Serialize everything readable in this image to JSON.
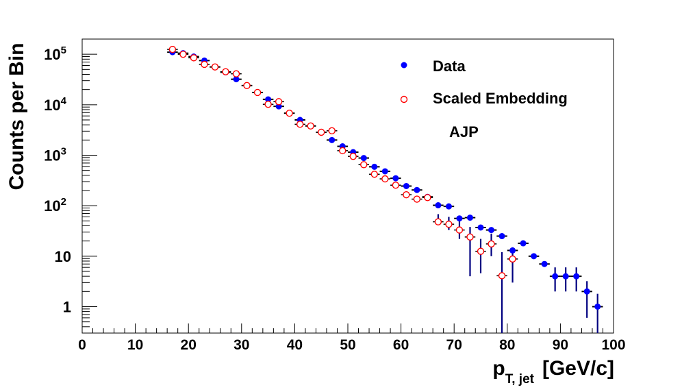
{
  "chart_data": {
    "type": "scatter",
    "xlabel": "p",
    "xlabel_sub": "T, jet",
    "xlabel_unit": "[GeV/c]",
    "ylabel": "Counts per Bin",
    "xlim": [
      0,
      100
    ],
    "ylim": [
      0.3,
      200000
    ],
    "yscale": "log",
    "grid": false,
    "legend_position": "top-right",
    "annotation": "AJP",
    "x_ticks": [
      0,
      10,
      20,
      30,
      40,
      50,
      60,
      70,
      80,
      90,
      100
    ],
    "y_ticks": [
      {
        "value": 1,
        "label": "1"
      },
      {
        "value": 10,
        "label": "10"
      },
      {
        "value": 100,
        "label": "10",
        "exp": "2"
      },
      {
        "value": 1000,
        "label": "10",
        "exp": "3"
      },
      {
        "value": 10000,
        "label": "10",
        "exp": "4"
      },
      {
        "value": 100000,
        "label": "10",
        "exp": "5"
      }
    ],
    "bin_half_width": 1,
    "series": [
      {
        "name": "Data",
        "color": "#0000ff",
        "marker": "filled-circle",
        "points": [
          {
            "x": 17,
            "y": 110000
          },
          {
            "x": 19,
            "y": 105000
          },
          {
            "x": 21,
            "y": 90000
          },
          {
            "x": 23,
            "y": 75000
          },
          {
            "x": 25,
            "y": 56000
          },
          {
            "x": 27,
            "y": 44000
          },
          {
            "x": 29,
            "y": 32000
          },
          {
            "x": 31,
            "y": 24000
          },
          {
            "x": 33,
            "y": 17500
          },
          {
            "x": 35,
            "y": 12800
          },
          {
            "x": 37,
            "y": 9300
          },
          {
            "x": 39,
            "y": 6800
          },
          {
            "x": 41,
            "y": 5000
          },
          {
            "x": 43,
            "y": 3800
          },
          {
            "x": 45,
            "y": 2850
          },
          {
            "x": 47,
            "y": 2000
          },
          {
            "x": 49,
            "y": 1500
          },
          {
            "x": 51,
            "y": 1150
          },
          {
            "x": 53,
            "y": 880
          },
          {
            "x": 55,
            "y": 590
          },
          {
            "x": 57,
            "y": 480
          },
          {
            "x": 59,
            "y": 350
          },
          {
            "x": 61,
            "y": 245
          },
          {
            "x": 63,
            "y": 205
          },
          {
            "x": 65,
            "y": 150
          },
          {
            "x": 67,
            "y": 102
          },
          {
            "x": 69,
            "y": 97
          },
          {
            "x": 71,
            "y": 56
          },
          {
            "x": 73,
            "y": 58
          },
          {
            "x": 75,
            "y": 37
          },
          {
            "x": 77,
            "y": 33
          },
          {
            "x": 79,
            "y": 25
          },
          {
            "x": 81,
            "y": 13
          },
          {
            "x": 83,
            "y": 18
          },
          {
            "x": 85,
            "y": 10
          },
          {
            "x": 87,
            "y": 7
          },
          {
            "x": 89,
            "y": 4
          },
          {
            "x": 91,
            "y": 4
          },
          {
            "x": 93,
            "y": 4
          },
          {
            "x": 95,
            "y": 2
          },
          {
            "x": 97,
            "y": 1
          }
        ]
      },
      {
        "name": "Scaled Embedding",
        "color": "#ff0000",
        "marker": "open-circle",
        "points": [
          {
            "x": 17,
            "y": 125000
          },
          {
            "x": 19,
            "y": 100000
          },
          {
            "x": 21,
            "y": 85000
          },
          {
            "x": 23,
            "y": 63000
          },
          {
            "x": 25,
            "y": 56000
          },
          {
            "x": 27,
            "y": 45000
          },
          {
            "x": 29,
            "y": 41000
          },
          {
            "x": 31,
            "y": 24000
          },
          {
            "x": 33,
            "y": 17500
          },
          {
            "x": 35,
            "y": 10200
          },
          {
            "x": 37,
            "y": 11500
          },
          {
            "x": 39,
            "y": 6800
          },
          {
            "x": 41,
            "y": 4100
          },
          {
            "x": 43,
            "y": 3800
          },
          {
            "x": 45,
            "y": 2850
          },
          {
            "x": 47,
            "y": 3050
          },
          {
            "x": 49,
            "y": 1230
          },
          {
            "x": 51,
            "y": 950
          },
          {
            "x": 53,
            "y": 650
          },
          {
            "x": 55,
            "y": 420
          },
          {
            "x": 57,
            "y": 340
          },
          {
            "x": 59,
            "y": 255
          },
          {
            "x": 61,
            "y": 165
          },
          {
            "x": 63,
            "y": 135
          },
          {
            "x": 65,
            "y": 145
          },
          {
            "x": 67,
            "y": 48
          },
          {
            "x": 69,
            "y": 43
          },
          {
            "x": 71,
            "y": 33
          },
          {
            "x": 73,
            "y": 24
          },
          {
            "x": 75,
            "y": 12.5
          },
          {
            "x": 77,
            "y": 17.5
          },
          {
            "x": 79,
            "y": 4.1
          },
          {
            "x": 81,
            "y": 8.8
          }
        ]
      }
    ],
    "data_error_bars": [
      {
        "x": 67,
        "lo": 43,
        "hi": 68
      },
      {
        "x": 69,
        "lo": 33,
        "hi": 60
      },
      {
        "x": 71,
        "lo": 22,
        "hi": 50
      },
      {
        "x": 73,
        "lo": 4,
        "hi": 38
      },
      {
        "x": 75,
        "lo": 4.6,
        "hi": 22
      },
      {
        "x": 77,
        "lo": 10,
        "hi": 28
      },
      {
        "x": 79,
        "lo": 0.3,
        "hi": 12
      },
      {
        "x": 81,
        "lo": 3,
        "hi": 15
      },
      {
        "x": 89,
        "lo": 2,
        "hi": 6
      },
      {
        "x": 91,
        "lo": 2,
        "hi": 6
      },
      {
        "x": 93,
        "lo": 2,
        "hi": 6
      },
      {
        "x": 95,
        "lo": 0.6,
        "hi": 3.2
      },
      {
        "x": 97,
        "lo": 0.3,
        "hi": 1.8
      }
    ]
  }
}
